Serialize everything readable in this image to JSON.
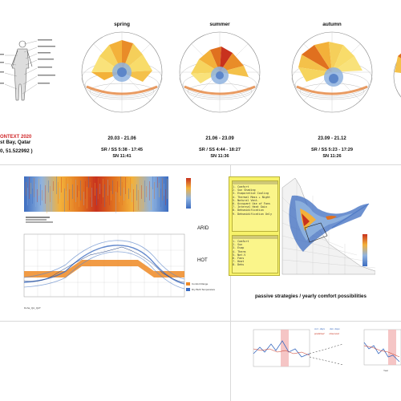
{
  "location": {
    "year_label": "ONTEXT 2020",
    "place": "st Bay, Qatar",
    "coords": "0, 51.522992 )"
  },
  "seasons": [
    {
      "name": "spring",
      "dates": "20.03 - 21.06",
      "sunrise_sunset": "SR / SS 5:38 - 17:45",
      "solar_noon": "SN 11:41"
    },
    {
      "name": "summer",
      "dates": "21.06 - 23.09",
      "sunrise_sunset": "SR / SS 4:44 - 18:27",
      "solar_noon": "SN 11:36"
    },
    {
      "name": "autumn",
      "dates": "23.09 - 21.12",
      "sunrise_sunset": "SR / SS 5:23 - 17:29",
      "solar_noon": "SN 11:26"
    }
  ],
  "climate": {
    "arid_label": "ARID",
    "hot_label": "HOT",
    "file_label": "Doha_QA_QAT"
  },
  "strategies": {
    "title": "passive strategies / yearly comfort possibilities",
    "list_a": [
      "1. Comfort",
      "2. Sun Shading",
      "3. Evaporative Cooling",
      "4. Thermal Mass + Night",
      "5. Natural Vent.",
      "6. Occupant Use of Fans",
      "7. Internal Heat Gain",
      "8. Dehumidification",
      "9. Dehumidification Only"
    ],
    "list_b": [
      "1. Comfort",
      "2. Sun",
      "3. Evap",
      "4. Therm",
      "5. Nat.V",
      "6. Fans",
      "7. Heat",
      "8. Dehu"
    ]
  },
  "temperature_chart": {
    "legend": [
      "Comfort Range",
      "Dry Bulb Temperature"
    ]
  },
  "trend_charts": {
    "legend": [
      "curr. days",
      "dev. days",
      "predicted",
      "observed"
    ],
    "xlabel": "Year"
  },
  "colors": {
    "warm": "#e0701f",
    "hot": "#c8321e",
    "cool": "#3c6cc0",
    "yellow": "#f7e84a",
    "band": "#ef8a25"
  }
}
